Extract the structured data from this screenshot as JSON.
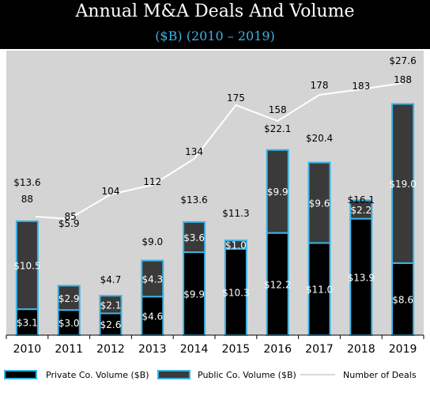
{
  "header": {
    "title": "Annual M&A Deals And Volume",
    "subtitle": "($B) (2010 – 2019)"
  },
  "colors": {
    "private": "#000000",
    "public": "#3a3a3a",
    "bar_outline": "#3bb4e6",
    "line": "#ffffff",
    "plot_bg": "#d4d4d4",
    "header_bg": "#000000",
    "subtitle": "#3bb4e6"
  },
  "chart_data": {
    "type": "bar",
    "stacked": true,
    "categories": [
      "2010",
      "2011",
      "2012",
      "2013",
      "2014",
      "2015",
      "2016",
      "2017",
      "2018",
      "2019"
    ],
    "series": [
      {
        "name": "Private Co. Volume ($B)",
        "values": [
          3.1,
          3.0,
          2.6,
          4.6,
          9.9,
          10.3,
          12.2,
          11.0,
          13.9,
          8.6
        ],
        "labels": [
          "$3.1",
          "$3.0",
          "$2.6",
          "$4.6",
          "$9.9",
          "$10.3",
          "$12.2",
          "$11.0",
          "$13.9",
          "$8.6"
        ]
      },
      {
        "name": "Public Co. Volume ($B)",
        "values": [
          10.5,
          2.9,
          2.1,
          4.3,
          3.6,
          1.0,
          9.9,
          9.6,
          2.2,
          19.0
        ],
        "labels": [
          "$10.5",
          "$2.9",
          "$2.1",
          "$4.3",
          "$3.6",
          "$1.0",
          "$9.9",
          "$9.6",
          "$2.2",
          "$19.0"
        ]
      }
    ],
    "totals": [
      13.6,
      5.9,
      4.7,
      9.0,
      13.6,
      11.3,
      22.1,
      20.4,
      16.1,
      27.6
    ],
    "total_labels": [
      "$13.6",
      "$5.9",
      "$4.7",
      "$9.0",
      "$13.6",
      "$11.3",
      "$22.1",
      "$20.4",
      "$16.1",
      "$27.6"
    ],
    "line_series": {
      "name": "Number of Deals",
      "values": [
        88,
        85,
        104,
        112,
        134,
        175,
        158,
        178,
        183,
        188
      ]
    },
    "ylim": [
      0,
      30
    ],
    "line_ylim": [
      0,
      240
    ],
    "legend_position": "bottom",
    "grid": false
  }
}
